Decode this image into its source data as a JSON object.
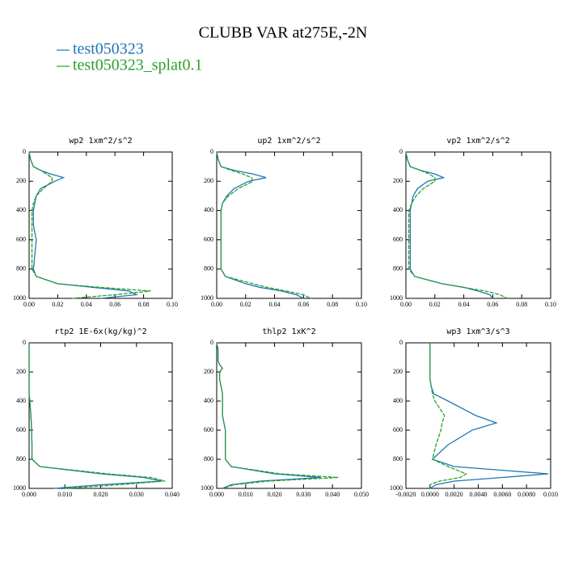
{
  "title": "CLUBB VAR at275E,-2N",
  "legend": [
    {
      "name": "test050323",
      "color": "#1f77b4"
    },
    {
      "name": "test050323_splat0.1",
      "color": "#2ca02c"
    }
  ],
  "chart_data": [
    {
      "type": "line",
      "title": "wp2  1xm^2/s^2",
      "levels": [
        0,
        50,
        100,
        125,
        150,
        175,
        200,
        250,
        300,
        350,
        400,
        500,
        600,
        700,
        800,
        850,
        900,
        925,
        950,
        975,
        1000
      ],
      "series": [
        {
          "values": [
            0,
            0.001,
            0.003,
            0.008,
            0.015,
            0.024,
            0.018,
            0.008,
            0.005,
            0.004,
            0.003,
            0.003,
            0.005,
            0.004,
            0.003,
            0.005,
            0.02,
            0.045,
            0.07,
            0.075,
            0.05
          ]
        },
        {
          "values": [
            0,
            0.001,
            0.003,
            0.008,
            0.012,
            0.016,
            0.016,
            0.01,
            0.005,
            0.003,
            0.002,
            0.002,
            0.002,
            0.002,
            0.002,
            0.005,
            0.02,
            0.05,
            0.085,
            0.06,
            0.03
          ]
        }
      ],
      "xlim": [
        0,
        0.1
      ],
      "xticks": [
        {
          "value": 0,
          "label": "0.00"
        },
        0.02,
        0.04,
        0.06,
        0.08,
        {
          "value": 0.1,
          "label": "0.10"
        }
      ],
      "ylim": [
        1000,
        0
      ],
      "yticks": [
        0,
        200,
        400,
        600,
        800,
        1000
      ]
    },
    {
      "type": "line",
      "title": "up2  1xm^2/s^2",
      "levels": [
        0,
        50,
        100,
        125,
        150,
        175,
        200,
        250,
        300,
        350,
        400,
        500,
        600,
        700,
        800,
        850,
        900,
        925,
        950,
        975,
        1000
      ],
      "series": [
        {
          "values": [
            0,
            0.001,
            0.003,
            0.012,
            0.025,
            0.034,
            0.022,
            0.012,
            0.007,
            0.004,
            0.003,
            0.003,
            0.003,
            0.003,
            0.003,
            0.006,
            0.02,
            0.03,
            0.045,
            0.055,
            0.06
          ]
        },
        {
          "values": [
            0,
            0.001,
            0.003,
            0.01,
            0.018,
            0.024,
            0.025,
            0.015,
            0.008,
            0.004,
            0.003,
            0.003,
            0.003,
            0.003,
            0.003,
            0.006,
            0.025,
            0.035,
            0.048,
            0.06,
            0.065
          ]
        }
      ],
      "xlim": [
        0,
        0.1
      ],
      "xticks": [
        {
          "value": 0,
          "label": "0.00"
        },
        0.02,
        0.04,
        0.06,
        0.08,
        {
          "value": 0.1,
          "label": "0.10"
        }
      ],
      "ylim": [
        1000,
        0
      ],
      "yticks": [
        0,
        200,
        400,
        600,
        800,
        1000
      ]
    },
    {
      "type": "line",
      "title": "vp2  1xm^2/s^2",
      "levels": [
        0,
        50,
        100,
        125,
        150,
        175,
        200,
        250,
        300,
        350,
        400,
        500,
        600,
        700,
        800,
        850,
        900,
        925,
        950,
        975,
        1000
      ],
      "series": [
        {
          "values": [
            0,
            0.001,
            0.003,
            0.01,
            0.02,
            0.026,
            0.015,
            0.008,
            0.005,
            0.004,
            0.003,
            0.003,
            0.003,
            0.003,
            0.003,
            0.006,
            0.025,
            0.04,
            0.05,
            0.058,
            0.06
          ]
        },
        {
          "values": [
            0,
            0.001,
            0.003,
            0.01,
            0.016,
            0.02,
            0.02,
            0.012,
            0.007,
            0.004,
            0.002,
            0.002,
            0.002,
            0.002,
            0.002,
            0.006,
            0.025,
            0.04,
            0.055,
            0.065,
            0.07
          ]
        }
      ],
      "xlim": [
        0,
        0.1
      ],
      "xticks": [
        {
          "value": 0,
          "label": "0.00"
        },
        0.02,
        0.04,
        0.06,
        0.08,
        {
          "value": 0.1,
          "label": "0.10"
        }
      ],
      "ylim": [
        1000,
        0
      ],
      "yticks": [
        0,
        200,
        400,
        600,
        800,
        1000
      ]
    },
    {
      "type": "line",
      "title": "rtp2  1E-6x(kg/kg)^2",
      "levels": [
        0,
        50,
        100,
        125,
        150,
        175,
        200,
        250,
        300,
        350,
        400,
        500,
        600,
        700,
        800,
        850,
        900,
        925,
        950,
        975,
        1000
      ],
      "series": [
        {
          "values": [
            0,
            0,
            0,
            0,
            0,
            0,
            0,
            0,
            0,
            0,
            0.0002,
            0.0005,
            0.0007,
            0.0008,
            0.0008,
            0.003,
            0.02,
            0.032,
            0.037,
            0.02,
            0.007
          ]
        },
        {
          "values": [
            0,
            0,
            0,
            0,
            0,
            0,
            0,
            0,
            0,
            0,
            0.0002,
            0.0005,
            0.0007,
            0.0008,
            0.0008,
            0.003,
            0.022,
            0.034,
            0.038,
            0.025,
            0.01
          ]
        }
      ],
      "xlim": [
        0,
        0.04
      ],
      "xticks": [
        {
          "value": 0,
          "label": "0.000"
        },
        {
          "value": 0.01,
          "label": "0.010"
        },
        {
          "value": 0.02,
          "label": "0.020"
        },
        {
          "value": 0.03,
          "label": "0.030"
        },
        {
          "value": 0.04,
          "label": "0.040"
        }
      ],
      "ylim": [
        1000,
        0
      ],
      "yticks": [
        0,
        200,
        400,
        600,
        800,
        1000
      ]
    },
    {
      "type": "line",
      "title": "thlp2  1xK^2",
      "levels": [
        0,
        50,
        100,
        125,
        150,
        175,
        200,
        250,
        300,
        350,
        400,
        500,
        600,
        700,
        800,
        850,
        900,
        925,
        950,
        975,
        1000
      ],
      "series": [
        {
          "values": [
            0,
            0.0005,
            0.0005,
            0.0005,
            0.001,
            0.002,
            0.001,
            0.001,
            0.0015,
            0.002,
            0.002,
            0.002,
            0.003,
            0.003,
            0.003,
            0.005,
            0.02,
            0.036,
            0.015,
            0.005,
            0.002
          ]
        },
        {
          "values": [
            0,
            0.0005,
            0.0005,
            0.0005,
            0.001,
            0.002,
            0.001,
            0.001,
            0.0015,
            0.002,
            0.002,
            0.002,
            0.003,
            0.003,
            0.003,
            0.005,
            0.022,
            0.042,
            0.018,
            0.006,
            0.002
          ]
        }
      ],
      "xlim": [
        0,
        0.05
      ],
      "xticks": [
        {
          "value": 0,
          "label": "0.000"
        },
        {
          "value": 0.01,
          "label": "0.010"
        },
        {
          "value": 0.02,
          "label": "0.020"
        },
        {
          "value": 0.03,
          "label": "0.030"
        },
        {
          "value": 0.04,
          "label": "0.040"
        },
        {
          "value": 0.05,
          "label": "0.050"
        }
      ],
      "ylim": [
        1000,
        0
      ],
      "yticks": [
        0,
        200,
        400,
        600,
        800,
        1000
      ]
    },
    {
      "type": "line",
      "title": "wp3  1xm^3/s^3",
      "levels": [
        0,
        50,
        100,
        125,
        150,
        175,
        200,
        250,
        300,
        350,
        400,
        500,
        550,
        600,
        700,
        800,
        850,
        900,
        925,
        950,
        975,
        1000
      ],
      "series": [
        {
          "values": [
            0,
            0,
            0,
            0,
            0,
            0,
            0,
            0,
            0.0001,
            0.0003,
            0.0015,
            0.0038,
            0.0055,
            0.0035,
            0.0015,
            0.0002,
            0.002,
            0.0098,
            0.006,
            0.002,
            0.0005,
            0
          ]
        },
        {
          "values": [
            0,
            0,
            0,
            0,
            0,
            0,
            0,
            0,
            0.0001,
            0.0002,
            0.0004,
            0.0012,
            0.001,
            0.0009,
            0.0005,
            0.0002,
            0.0015,
            0.003,
            0.0025,
            0.0008,
            0,
            -0.0001
          ]
        }
      ],
      "xlim": [
        -0.002,
        0.01
      ],
      "xticks": [
        {
          "value": -0.002,
          "label": "-0.0020"
        },
        {
          "value": 0,
          "label": "0.0000"
        },
        {
          "value": 0.002,
          "label": "0.0020"
        },
        {
          "value": 0.004,
          "label": "0.0040"
        },
        {
          "value": 0.006,
          "label": "0.0060"
        },
        {
          "value": 0.008,
          "label": "0.0080"
        },
        {
          "value": 0.01,
          "label": "0.010"
        }
      ],
      "ylim": [
        1000,
        0
      ],
      "yticks": [
        0,
        200,
        400,
        600,
        800,
        1000
      ]
    }
  ]
}
